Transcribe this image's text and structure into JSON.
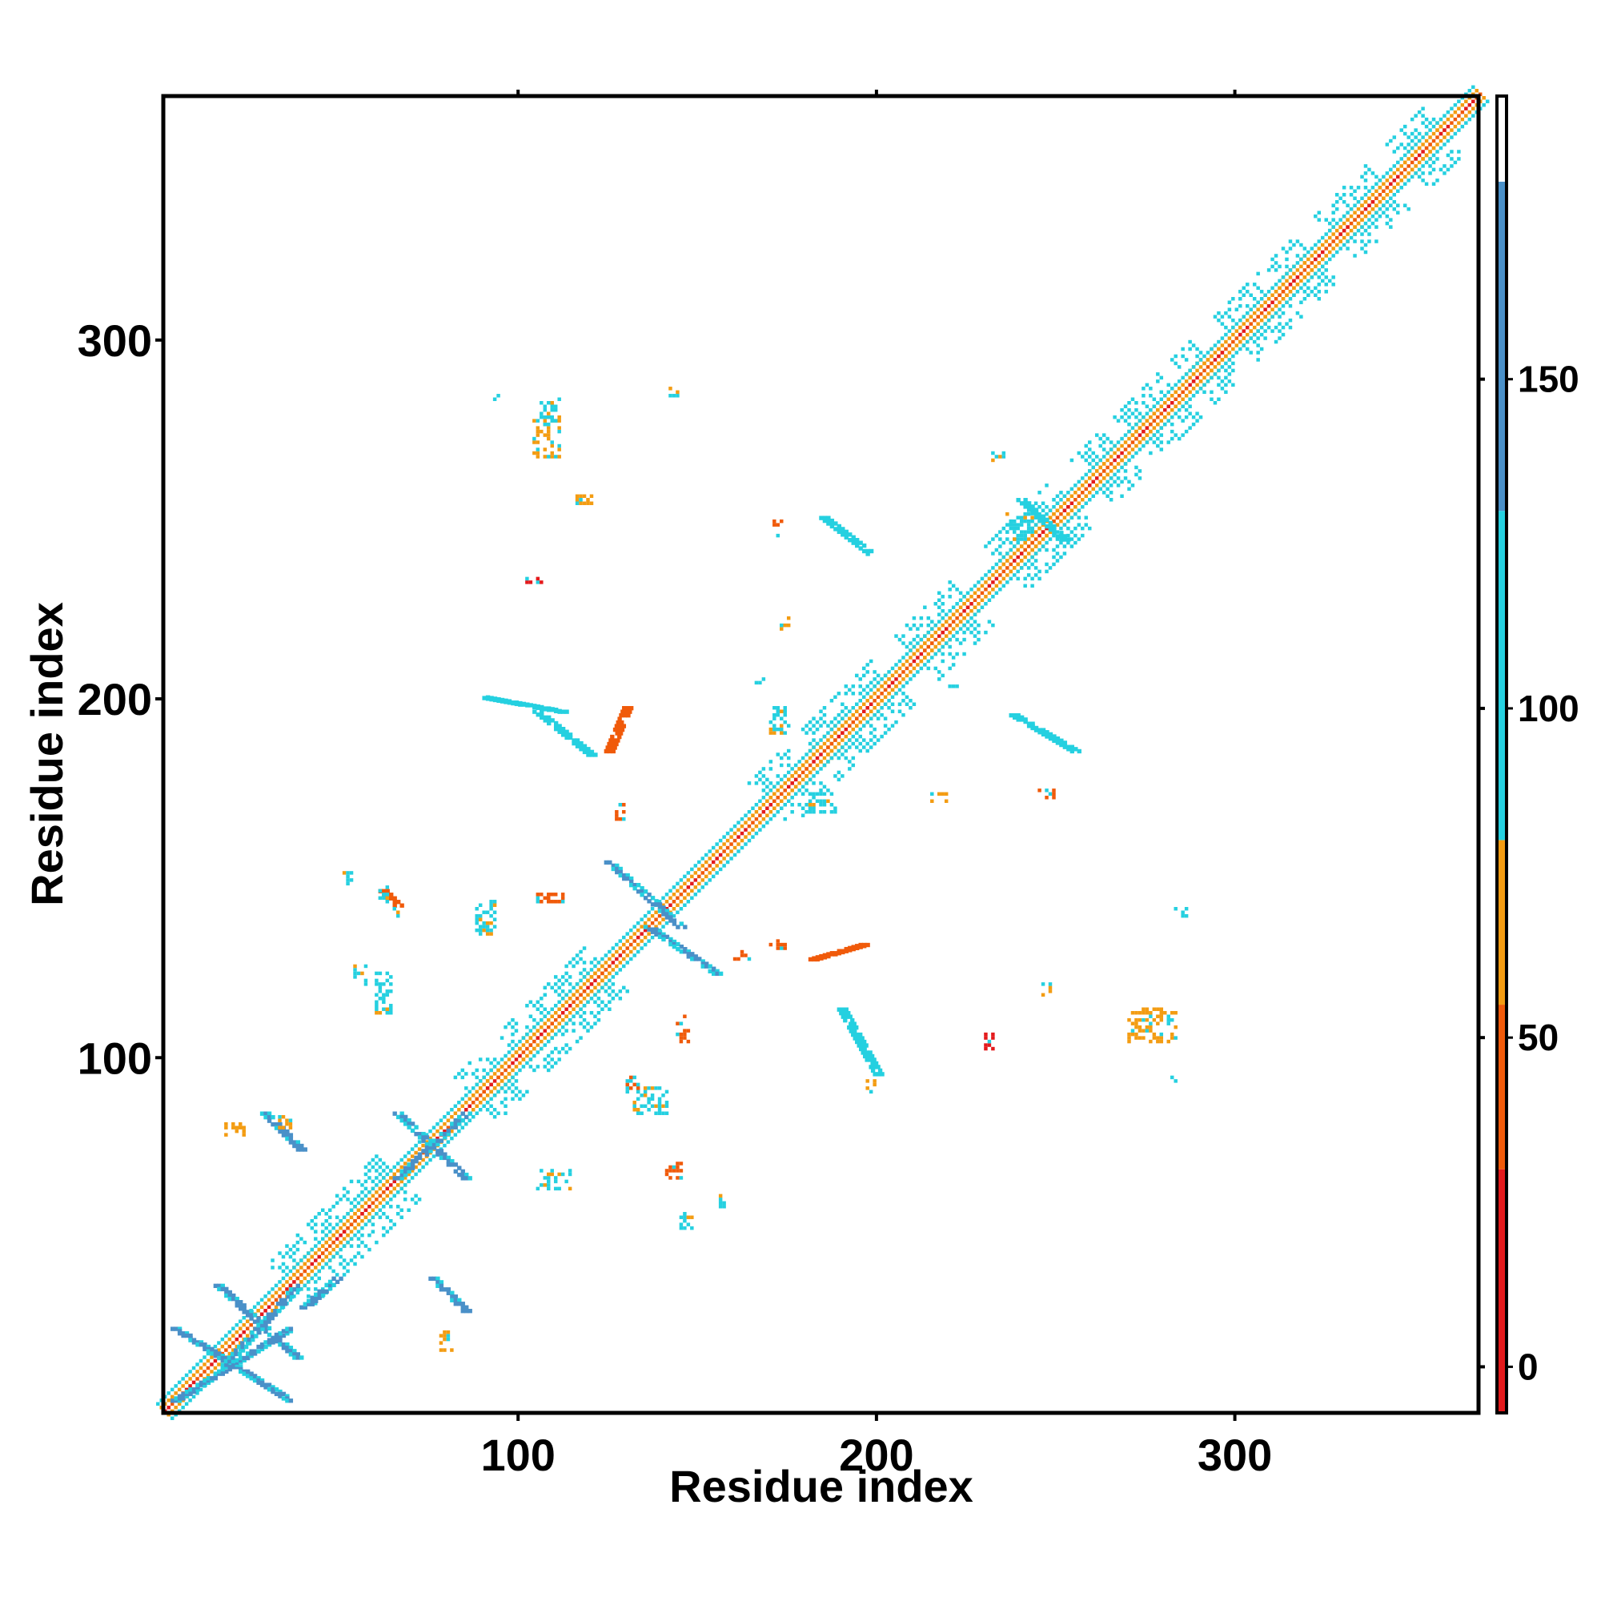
{
  "chart_data": {
    "type": "heatmap",
    "title": "",
    "xlabel": "Residue index",
    "ylabel": "Residue index",
    "xlim": [
      1,
      368
    ],
    "ylim": [
      1,
      368
    ],
    "x_ticks": [
      100,
      200,
      300
    ],
    "y_ticks": [
      100,
      200,
      300
    ],
    "grid": false,
    "legend": "colorbar-right",
    "colorbar": {
      "ticks": [
        0,
        50,
        100,
        150
      ],
      "range": [
        -7,
        193
      ],
      "bands": [
        {
          "from": -7,
          "to": 30,
          "color": "#e31a1c"
        },
        {
          "from": 30,
          "to": 55,
          "color": "#f05a0a"
        },
        {
          "from": 55,
          "to": 80,
          "color": "#f39c12"
        },
        {
          "from": 80,
          "to": 130,
          "color": "#25d0e0"
        },
        {
          "from": 130,
          "to": 180,
          "color": "#4a90c8"
        },
        {
          "from": 180,
          "to": 193,
          "color": "#ffffff"
        }
      ]
    },
    "colors": {
      "red": "#e31a1c",
      "orange": "#f05a0a",
      "light_orange": "#f39c12",
      "cyan": "#25d0e0",
      "blue": "#4a90c8"
    },
    "diagonal": {
      "from": 1,
      "to": 368,
      "core_color": "#e31a1c",
      "band_color": "#f39c12",
      "outer_color": "#25d0e0"
    },
    "diagonal_blocks": [
      {
        "start": 36,
        "end": 66,
        "color": "#25d0e0"
      },
      {
        "start": 88,
        "end": 96,
        "color": "#25d0e0"
      },
      {
        "start": 100,
        "end": 124,
        "color": "#25d0e0"
      },
      {
        "start": 170,
        "end": 180,
        "color": "#25d0e0"
      },
      {
        "start": 183,
        "end": 204,
        "color": "#25d0e0"
      },
      {
        "start": 211,
        "end": 226,
        "color": "#25d0e0"
      },
      {
        "start": 236,
        "end": 254,
        "color": "#25d0e0"
      },
      {
        "start": 260,
        "end": 268,
        "color": "#25d0e0"
      },
      {
        "start": 272,
        "end": 284,
        "color": "#25d0e0"
      },
      {
        "start": 288,
        "end": 296,
        "color": "#25d0e0"
      },
      {
        "start": 300,
        "end": 310,
        "color": "#25d0e0"
      },
      {
        "start": 312,
        "end": 322,
        "color": "#25d0e0"
      },
      {
        "start": 328,
        "end": 342,
        "color": "#25d0e0"
      },
      {
        "start": 348,
        "end": 358,
        "color": "#25d0e0"
      }
    ],
    "strands": [
      {
        "x1": 4,
        "y1": 24,
        "x2": 36,
        "y2": 4,
        "color": "#4a90c8"
      },
      {
        "x1": 4,
        "y1": 4,
        "x2": 36,
        "y2": 24,
        "color": "#4a90c8"
      },
      {
        "x1": 16,
        "y1": 36,
        "x2": 38,
        "y2": 16,
        "color": "#4a90c8"
      },
      {
        "x1": 18,
        "y1": 14,
        "x2": 38,
        "y2": 36,
        "color": "#4a90c8"
      },
      {
        "x1": 29,
        "y1": 84,
        "x2": 39,
        "y2": 74,
        "color": "#4a90c8"
      },
      {
        "x1": 66,
        "y1": 84,
        "x2": 85,
        "y2": 66,
        "color": "#4a90c8"
      },
      {
        "x1": 66,
        "y1": 66,
        "x2": 85,
        "y2": 84,
        "color": "#4a90c8"
      },
      {
        "x1": 76,
        "y1": 38,
        "x2": 85,
        "y2": 29,
        "color": "#4a90c8"
      },
      {
        "x1": 125,
        "y1": 154,
        "x2": 145,
        "y2": 136,
        "color": "#4a90c8"
      },
      {
        "x1": 136,
        "y1": 136,
        "x2": 155,
        "y2": 123,
        "color": "#4a90c8"
      },
      {
        "x1": 182,
        "y1": 127,
        "x2": 196,
        "y2": 131,
        "color": "#f05a0a"
      },
      {
        "x1": 190,
        "y1": 113,
        "x2": 200,
        "y2": 95,
        "color": "#25d0e0"
      },
      {
        "x1": 90,
        "y1": 200,
        "x2": 112,
        "y2": 196,
        "color": "#25d0e0"
      },
      {
        "x1": 105,
        "y1": 196,
        "x2": 120,
        "y2": 184,
        "color": "#25d0e0"
      },
      {
        "x1": 125,
        "y1": 185,
        "x2": 130,
        "y2": 197,
        "color": "#f05a0a"
      },
      {
        "x1": 185,
        "y1": 250,
        "x2": 198,
        "y2": 240,
        "color": "#25d0e0"
      },
      {
        "x1": 238,
        "y1": 195,
        "x2": 255,
        "y2": 185,
        "color": "#25d0e0"
      },
      {
        "x1": 240,
        "y1": 255,
        "x2": 252,
        "y2": 244,
        "color": "#25d0e0"
      },
      {
        "x1": 40,
        "y1": 30,
        "x2": 49,
        "y2": 38,
        "color": "#4a90c8"
      },
      {
        "x1": 62,
        "y1": 146,
        "x2": 66,
        "y2": 142,
        "color": "#f05a0a"
      }
    ],
    "clusters": [
      {
        "x": 88,
        "y": 134,
        "w": 6,
        "h": 10,
        "color": "#25d0e0"
      },
      {
        "x": 132,
        "y": 84,
        "w": 10,
        "h": 8,
        "color": "#25d0e0"
      },
      {
        "x": 141,
        "y": 66,
        "w": 5,
        "h": 5,
        "color": "#f05a0a"
      },
      {
        "x": 144,
        "y": 104,
        "w": 4,
        "h": 8,
        "color": "#f05a0a"
      },
      {
        "x": 127,
        "y": 166,
        "w": 3,
        "h": 5,
        "color": "#f05a0a"
      },
      {
        "x": 236,
        "y": 244,
        "w": 8,
        "h": 8,
        "color": "#25d0e0"
      },
      {
        "x": 245,
        "y": 172,
        "w": 5,
        "h": 3,
        "color": "#f05a0a"
      },
      {
        "x": 232,
        "y": 265,
        "w": 4,
        "h": 4,
        "color": "#25d0e0"
      },
      {
        "x": 104,
        "y": 267,
        "w": 8,
        "h": 12,
        "color": "#f39c12"
      },
      {
        "x": 106,
        "y": 276,
        "w": 6,
        "h": 8,
        "color": "#25d0e0"
      },
      {
        "x": 171,
        "y": 245,
        "w": 3,
        "h": 5,
        "color": "#f05a0a"
      },
      {
        "x": 181,
        "y": 168,
        "w": 8,
        "h": 6,
        "color": "#25d0e0"
      },
      {
        "x": 270,
        "y": 104,
        "w": 14,
        "h": 10,
        "color": "#f39c12"
      },
      {
        "x": 283,
        "y": 139,
        "w": 4,
        "h": 3,
        "color": "#25d0e0"
      },
      {
        "x": 142,
        "y": 283,
        "w": 3,
        "h": 4,
        "color": "#25d0e0"
      },
      {
        "x": 105,
        "y": 63,
        "w": 10,
        "h": 6,
        "color": "#25d0e0"
      },
      {
        "x": 169,
        "y": 130,
        "w": 6,
        "h": 3,
        "color": "#f05a0a"
      },
      {
        "x": 105,
        "y": 143,
        "w": 8,
        "h": 3,
        "color": "#f05a0a"
      },
      {
        "x": 60,
        "y": 112,
        "w": 5,
        "h": 12,
        "color": "#25d0e0"
      },
      {
        "x": 160,
        "y": 127,
        "w": 5,
        "h": 3,
        "color": "#f05a0a"
      },
      {
        "x": 246,
        "y": 117,
        "w": 3,
        "h": 4,
        "color": "#f39c12"
      },
      {
        "x": 230,
        "y": 102,
        "w": 3,
        "h": 5,
        "color": "#e31a1c"
      },
      {
        "x": 145,
        "y": 52,
        "w": 4,
        "h": 5,
        "color": "#25d0e0"
      },
      {
        "x": 170,
        "y": 190,
        "w": 6,
        "h": 8,
        "color": "#25d0e0"
      },
      {
        "x": 215,
        "y": 171,
        "w": 6,
        "h": 3,
        "color": "#f39c12"
      },
      {
        "x": 196,
        "y": 90,
        "w": 5,
        "h": 4,
        "color": "#f39c12"
      },
      {
        "x": 102,
        "y": 232,
        "w": 5,
        "h": 4,
        "color": "#e31a1c"
      },
      {
        "x": 116,
        "y": 254,
        "w": 5,
        "h": 3,
        "color": "#f39c12"
      },
      {
        "x": 18,
        "y": 78,
        "w": 6,
        "h": 4,
        "color": "#f39c12"
      },
      {
        "x": 78,
        "y": 18,
        "w": 4,
        "h": 6,
        "color": "#f39c12"
      },
      {
        "x": 61,
        "y": 142,
        "w": 4,
        "h": 6,
        "color": "#25d0e0"
      },
      {
        "x": 93,
        "y": 283,
        "w": 2,
        "h": 2,
        "color": "#25d0e0"
      },
      {
        "x": 282,
        "y": 93,
        "w": 2,
        "h": 2,
        "color": "#25d0e0"
      },
      {
        "x": 166,
        "y": 203,
        "w": 3,
        "h": 3,
        "color": "#25d0e0"
      },
      {
        "x": 173,
        "y": 217,
        "w": 3,
        "h": 6,
        "color": "#f39c12"
      },
      {
        "x": 220,
        "y": 203,
        "w": 4,
        "h": 2,
        "color": "#25d0e0"
      },
      {
        "x": 51,
        "y": 148,
        "w": 3,
        "h": 4,
        "color": "#25d0e0"
      },
      {
        "x": 54,
        "y": 120,
        "w": 4,
        "h": 6,
        "color": "#25d0e0"
      },
      {
        "x": 155,
        "y": 58,
        "w": 3,
        "h": 4,
        "color": "#25d0e0"
      },
      {
        "x": 33,
        "y": 80,
        "w": 4,
        "h": 4,
        "color": "#f39c12"
      },
      {
        "x": 65,
        "y": 138,
        "w": 3,
        "h": 4,
        "color": "#25d0e0"
      },
      {
        "x": 130,
        "y": 90,
        "w": 4,
        "h": 5,
        "color": "#f05a0a"
      }
    ]
  }
}
